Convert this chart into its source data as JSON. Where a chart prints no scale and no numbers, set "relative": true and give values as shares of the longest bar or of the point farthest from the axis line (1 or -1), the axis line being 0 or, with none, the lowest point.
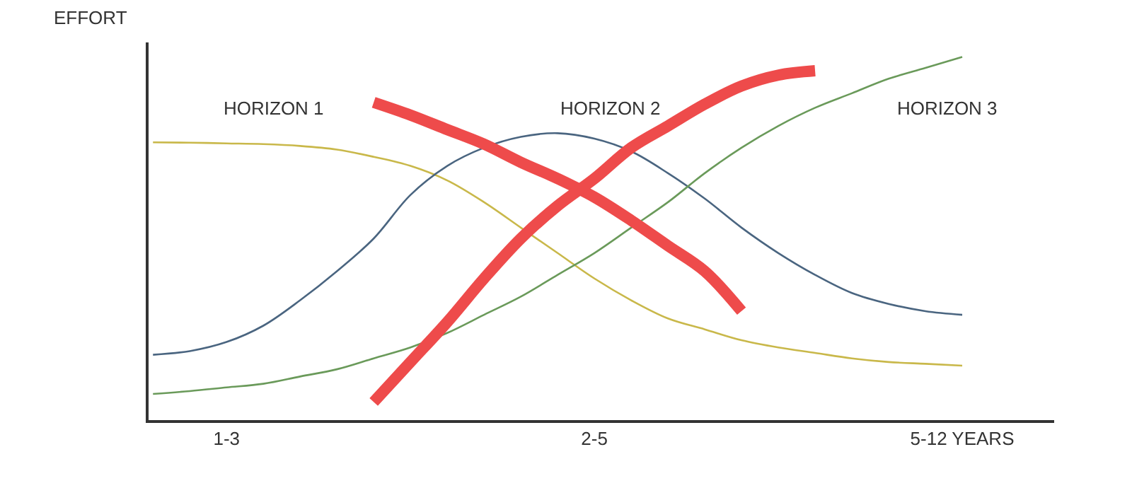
{
  "chart_data": {
    "type": "line",
    "relative": true,
    "ylabel": "EFFORT",
    "categories": [
      null,
      null,
      "1-3",
      null,
      null,
      null,
      null,
      null,
      null,
      null,
      null,
      null,
      "2-5",
      null,
      null,
      null,
      null,
      null,
      null,
      null,
      null,
      null,
      "5-12 YEARS",
      null,
      null
    ],
    "annotations": [
      "HORIZON 1",
      "HORIZON 2",
      "HORIZON 3"
    ],
    "marker": "none",
    "line_style": "solid",
    "series": [
      {
        "color": "#c9b84a",
        "values": [
          0.765,
          0.764,
          0.762,
          0.76,
          0.755,
          0.745,
          0.725,
          0.7,
          0.66,
          0.6,
          0.53,
          0.46,
          0.39,
          0.33,
          0.28,
          0.25,
          0.22,
          0.2,
          0.185,
          0.17,
          0.16,
          0.155,
          0.15,
          null,
          null
        ]
      },
      {
        "color": "#4a6580",
        "values": [
          0.18,
          0.19,
          0.215,
          0.26,
          0.33,
          0.41,
          0.5,
          0.62,
          0.7,
          0.75,
          0.78,
          0.79,
          0.775,
          0.74,
          0.68,
          0.61,
          0.53,
          0.46,
          0.4,
          0.35,
          0.32,
          0.3,
          0.29,
          null,
          null
        ]
      },
      {
        "color": "#6a9a5a",
        "values": [
          0.072,
          0.08,
          0.09,
          0.1,
          0.12,
          0.14,
          0.17,
          0.2,
          0.24,
          0.29,
          0.34,
          0.4,
          0.46,
          0.53,
          0.6,
          0.68,
          0.75,
          0.81,
          0.86,
          0.9,
          0.94,
          0.97,
          1.0,
          null,
          null
        ]
      },
      {
        "color": "#ee4b4b",
        "values": [
          null,
          null,
          null,
          null,
          null,
          null,
          0.875,
          0.84,
          0.8,
          0.76,
          0.71,
          0.665,
          0.614,
          0.55,
          0.48,
          0.41,
          0.3,
          null,
          null,
          null,
          null,
          null,
          null,
          null,
          null
        ]
      },
      {
        "color": "#ee4b4b",
        "values": [
          null,
          null,
          null,
          null,
          null,
          null,
          0.05,
          0.16,
          0.27,
          0.39,
          0.5,
          0.59,
          0.665,
          0.75,
          0.81,
          0.87,
          0.92,
          0.95,
          0.962,
          null,
          null,
          null,
          null,
          null,
          null
        ]
      }
    ]
  }
}
